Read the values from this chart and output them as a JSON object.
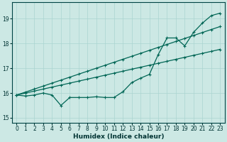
{
  "xlabel": "Humidex (Indice chaleur)",
  "background_color": "#cce8e4",
  "grid_color": "#aad4d0",
  "line_color": "#006655",
  "xlim": [
    -0.5,
    23.5
  ],
  "ylim": [
    14.8,
    19.65
  ],
  "xticks": [
    0,
    1,
    2,
    3,
    4,
    5,
    6,
    7,
    8,
    9,
    10,
    11,
    12,
    13,
    14,
    15,
    16,
    17,
    18,
    19,
    20,
    21,
    22,
    23
  ],
  "yticks": [
    15,
    16,
    17,
    18,
    19
  ],
  "line1_x": [
    0,
    1,
    2,
    3,
    4,
    5,
    6,
    7,
    8,
    9,
    10,
    11,
    12,
    13,
    14,
    15,
    16,
    17,
    18,
    19,
    20,
    21,
    22,
    23
  ],
  "line1_y": [
    15.92,
    16.0,
    16.08,
    16.16,
    16.24,
    16.32,
    16.4,
    16.48,
    16.56,
    16.64,
    16.72,
    16.8,
    16.88,
    16.96,
    17.04,
    17.12,
    17.2,
    17.28,
    17.36,
    17.44,
    17.52,
    17.6,
    17.68,
    17.76
  ],
  "line2_x": [
    0,
    1,
    2,
    3,
    4,
    5,
    6,
    7,
    8,
    9,
    10,
    11,
    12,
    13,
    14,
    15,
    16,
    17,
    18,
    19,
    20,
    21,
    22,
    23
  ],
  "line2_y": [
    15.92,
    16.04,
    16.16,
    16.28,
    16.4,
    16.52,
    16.64,
    16.76,
    16.88,
    17.0,
    17.12,
    17.24,
    17.36,
    17.48,
    17.6,
    17.72,
    17.84,
    17.96,
    18.08,
    18.2,
    18.32,
    18.44,
    18.56,
    18.68
  ],
  "line3_x": [
    0,
    1,
    2,
    3,
    4,
    5,
    6,
    7,
    8,
    9,
    10,
    11,
    12,
    13,
    14,
    15,
    16,
    17,
    18,
    19,
    20,
    21,
    22,
    23
  ],
  "line3_y": [
    15.92,
    15.88,
    15.92,
    16.0,
    15.92,
    15.5,
    15.82,
    15.82,
    15.82,
    15.85,
    15.82,
    15.82,
    16.05,
    16.42,
    16.6,
    16.75,
    17.55,
    18.22,
    18.22,
    17.9,
    18.45,
    18.82,
    19.12,
    19.22
  ],
  "marker": "+",
  "markersize": 3,
  "linewidth": 0.9,
  "tick_fontsize": 5.5,
  "xlabel_fontsize": 6.5
}
